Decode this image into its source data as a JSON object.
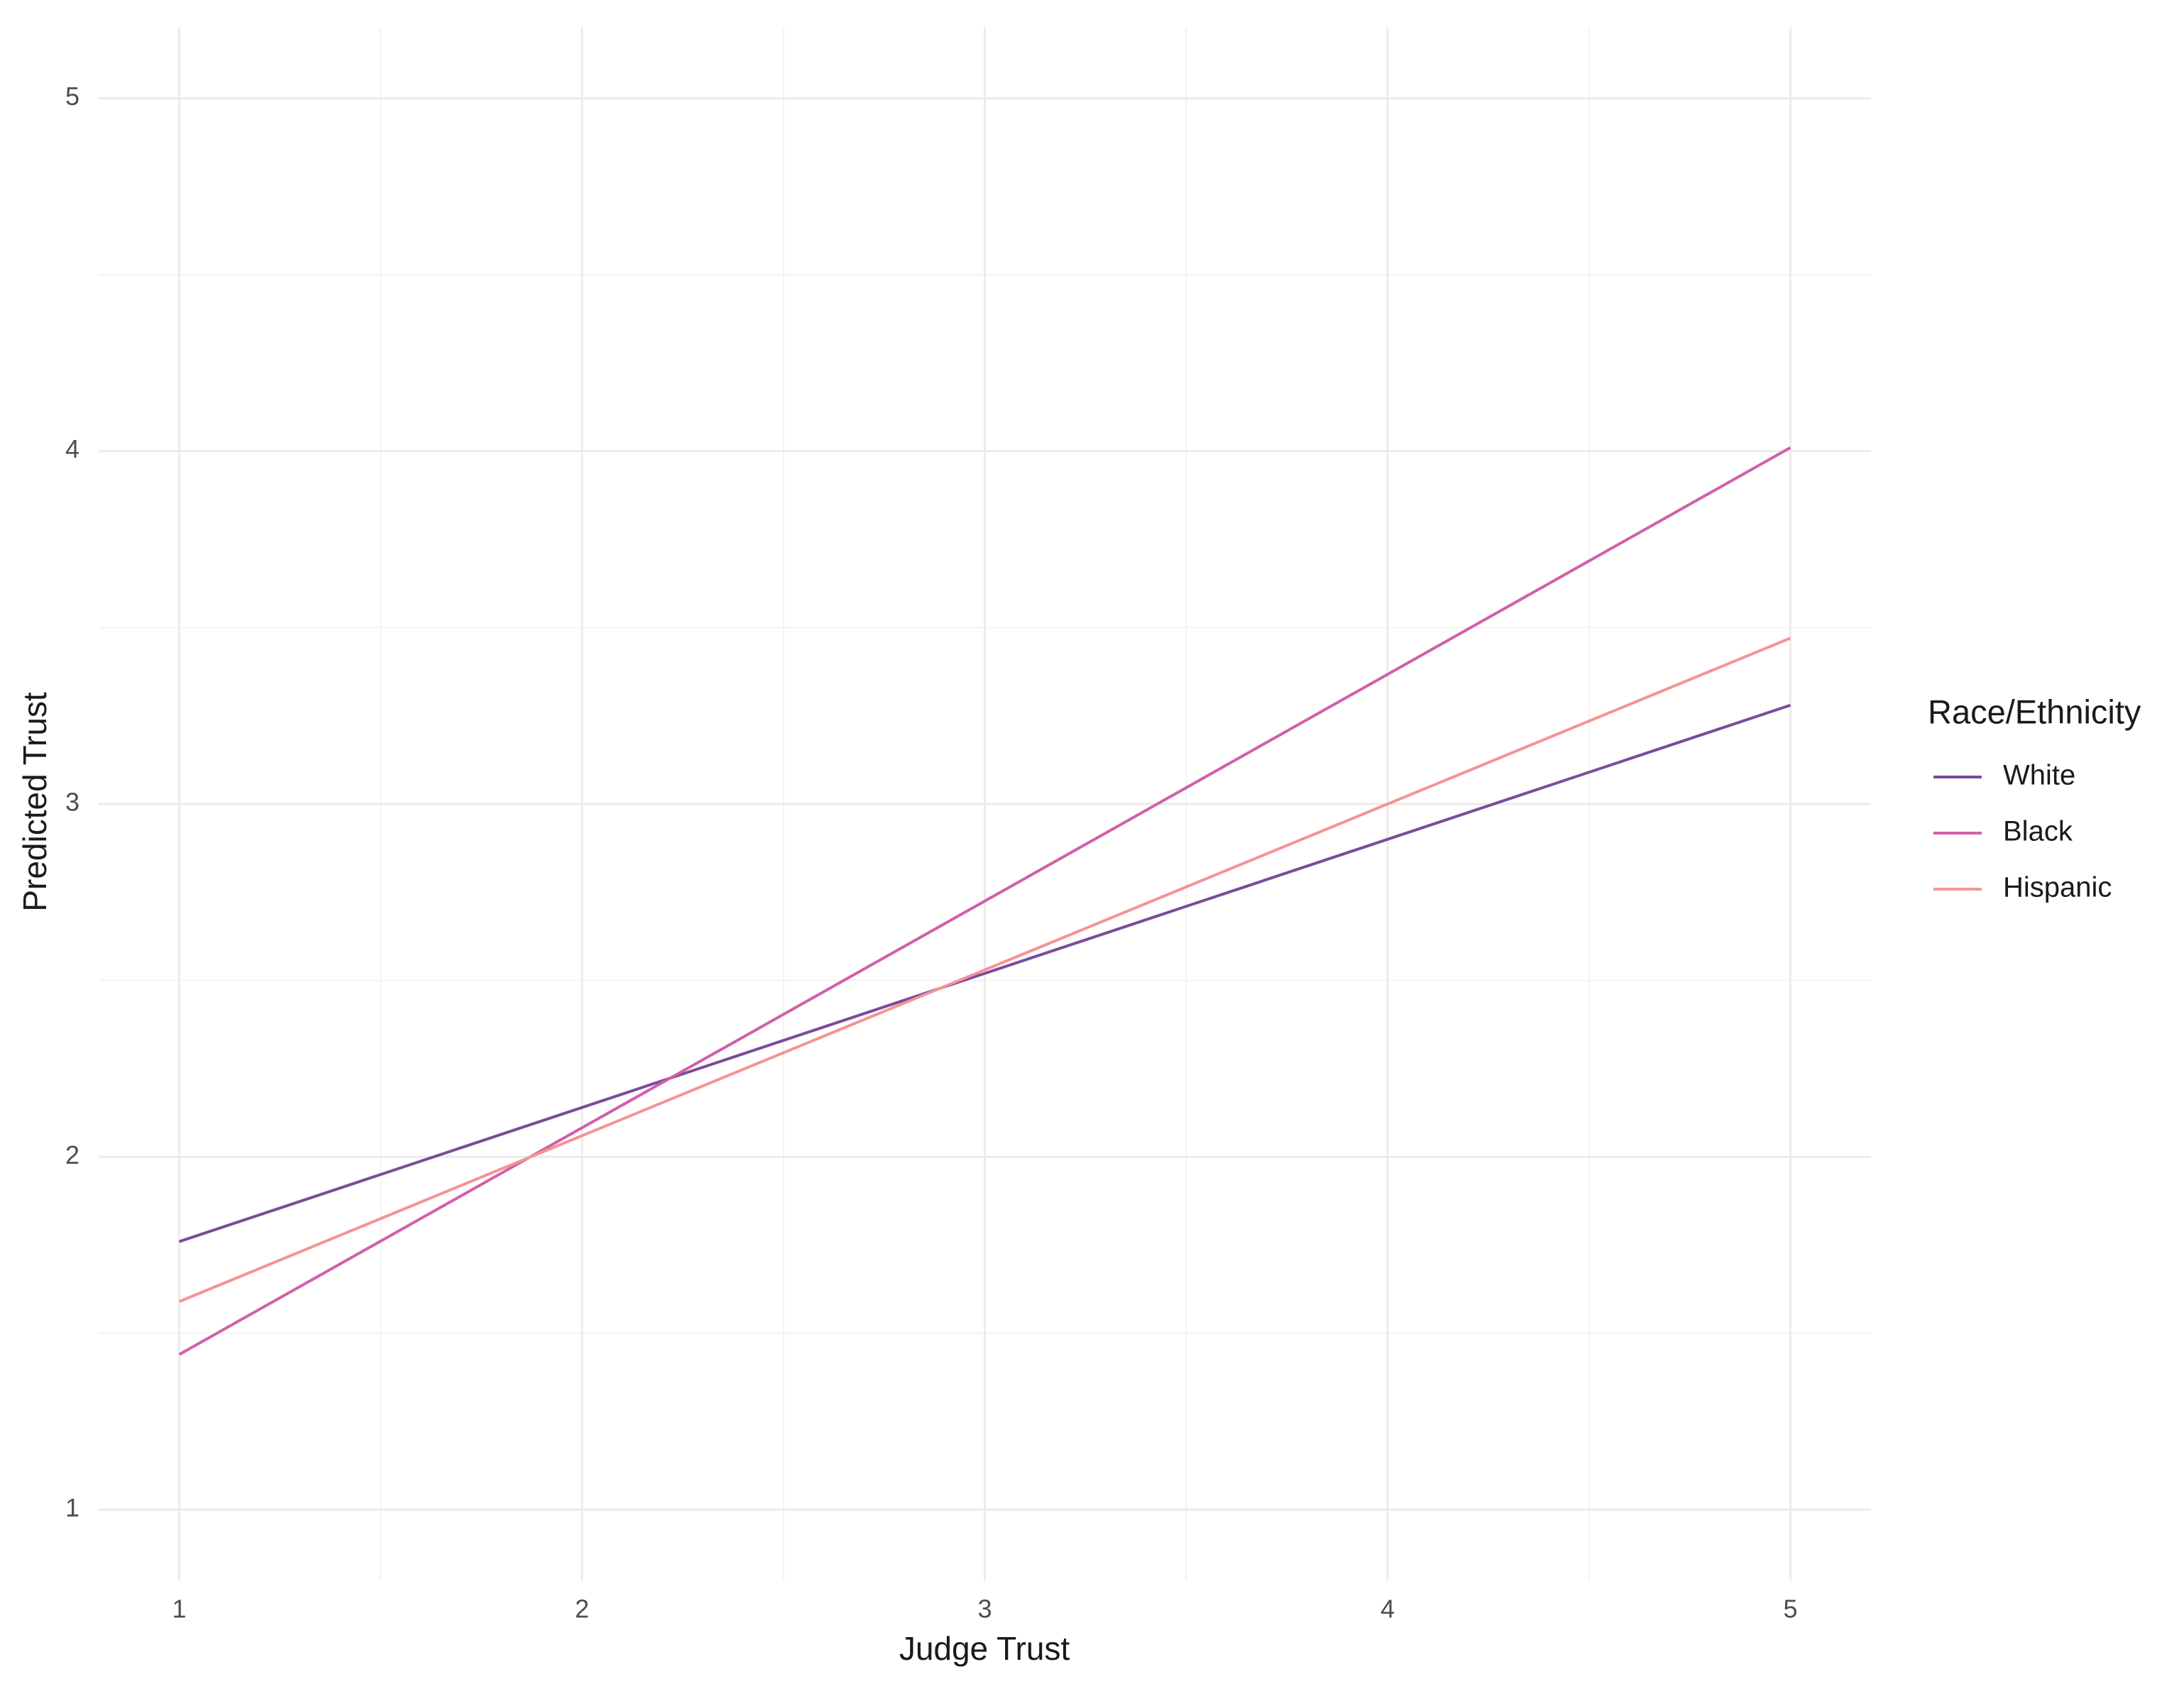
{
  "chart_data": {
    "type": "line",
    "x_label": "Judge Trust",
    "y_label": "Predicted Trust",
    "x": [
      1,
      5
    ],
    "series": [
      {
        "name": "White",
        "color": "#7b4a9e",
        "values": [
          1.76,
          3.28
        ]
      },
      {
        "name": "Black",
        "color": "#d060a8",
        "values": [
          1.44,
          4.01
        ]
      },
      {
        "name": "Hispanic",
        "color": "#f59393",
        "values": [
          1.59,
          3.47
        ]
      }
    ],
    "legend_title": "Race/Ethnicity",
    "legend": "right",
    "xlim": [
      0.8,
      5.2
    ],
    "ylim": [
      0.8,
      5.2
    ],
    "xticks": [
      1,
      2,
      3,
      4,
      5
    ],
    "yticks": [
      1,
      2,
      3,
      4,
      5
    ],
    "grid": true,
    "minor_grid": true
  }
}
